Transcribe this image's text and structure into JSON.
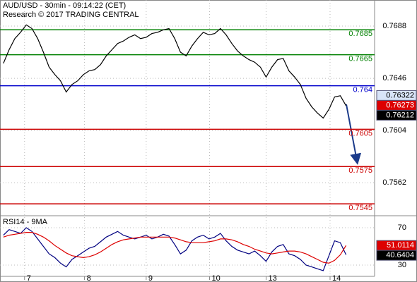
{
  "chart_data": [
    {
      "type": "line",
      "title": "AUD/USD - 30min - 09:14:22 (CET)",
      "subtitle": "Research © 2017 TRADING CENTRAL",
      "xlim": [
        -0.6,
        65
      ],
      "xticks": [
        {
          "value": 3.7,
          "label": "7"
        },
        {
          "value": 14.2,
          "label": "8"
        },
        {
          "value": 25.0,
          "label": "9"
        },
        {
          "value": 36.1,
          "label": "10"
        },
        {
          "value": 46.0,
          "label": "13"
        },
        {
          "value": 57.2,
          "label": "14"
        }
      ],
      "ylim": [
        0.7536,
        0.7709
      ],
      "yticks": [
        0.7688,
        0.7646,
        0.7604,
        0.7562
      ],
      "grid": true,
      "series": [
        {
          "name": "AUD/USD",
          "color": "#000000",
          "values": [
            0.7658,
            0.7669,
            0.7678,
            0.7683,
            0.7689,
            0.7686,
            0.7678,
            0.7667,
            0.7655,
            0.7649,
            0.7644,
            0.7635,
            0.7641,
            0.7644,
            0.7649,
            0.7652,
            0.7653,
            0.7657,
            0.7664,
            0.7669,
            0.7674,
            0.7676,
            0.7679,
            0.7681,
            0.7678,
            0.7679,
            0.7682,
            0.7683,
            0.7685,
            0.7686,
            0.7678,
            0.7667,
            0.7664,
            0.7672,
            0.7678,
            0.7683,
            0.7681,
            0.7682,
            0.7686,
            0.7681,
            0.7674,
            0.7668,
            0.7664,
            0.7661,
            0.7659,
            0.7655,
            0.7647,
            0.7655,
            0.7661,
            0.7662,
            0.7652,
            0.7647,
            0.7641,
            0.763,
            0.7623,
            0.7618,
            0.7614,
            0.7621,
            0.7631,
            0.7632,
            0.7624
          ]
        }
      ],
      "levels": [
        {
          "value": 0.7685,
          "color": "#008000"
        },
        {
          "value": 0.7665,
          "color": "#008000"
        },
        {
          "value": 0.764,
          "color": "#0000cc"
        },
        {
          "value": 0.7605,
          "color": "#cc0000"
        },
        {
          "value": 0.7575,
          "color": "#cc0000"
        },
        {
          "value": 0.7545,
          "color": "#cc0000"
        }
      ],
      "markers": [
        {
          "value": 0.76322,
          "color": "#d8e4f8"
        },
        {
          "value": 0.76273,
          "color": "#dd0000"
        },
        {
          "value": 0.76212,
          "color": "#000000"
        }
      ]
    },
    {
      "type": "line",
      "title": "RSI14 - 9MA",
      "xlim": [
        -0.6,
        65
      ],
      "ylim": [
        19.4,
        82.1
      ],
      "yticks": [
        70,
        30
      ],
      "series": [
        {
          "name": "RSI14",
          "color": "#000080",
          "values": [
            62,
            68,
            66,
            64,
            70,
            66,
            58,
            50,
            42,
            38,
            32,
            28,
            36,
            40,
            44,
            48,
            50,
            55,
            60,
            63,
            66,
            62,
            60,
            58,
            60,
            62,
            58,
            60,
            63,
            61,
            52,
            42,
            46,
            56,
            60,
            62,
            58,
            60,
            64,
            56,
            50,
            46,
            44,
            42,
            45,
            40,
            34,
            44,
            50,
            52,
            42,
            40,
            36,
            30,
            28,
            26,
            24,
            40,
            56,
            54,
            41
          ]
        },
        {
          "name": "9MA",
          "color": "#dd0000",
          "values": [
            60,
            62,
            63,
            64,
            65,
            65,
            63,
            60,
            56,
            51,
            47,
            43,
            40,
            39,
            38,
            39,
            41,
            44,
            48,
            52,
            55,
            57,
            58,
            59,
            60,
            60,
            60,
            60,
            60,
            60,
            59,
            57,
            55,
            54,
            54,
            54,
            55,
            56,
            58,
            58,
            57,
            55,
            52,
            50,
            47,
            45,
            43,
            42,
            43,
            44,
            45,
            45,
            44,
            42,
            39,
            36,
            33,
            32,
            35,
            41,
            51
          ]
        }
      ],
      "markers": [
        {
          "value": 51.0114,
          "color": "#dd0000"
        },
        {
          "value": 40.6404,
          "color": "#000000"
        }
      ]
    }
  ]
}
